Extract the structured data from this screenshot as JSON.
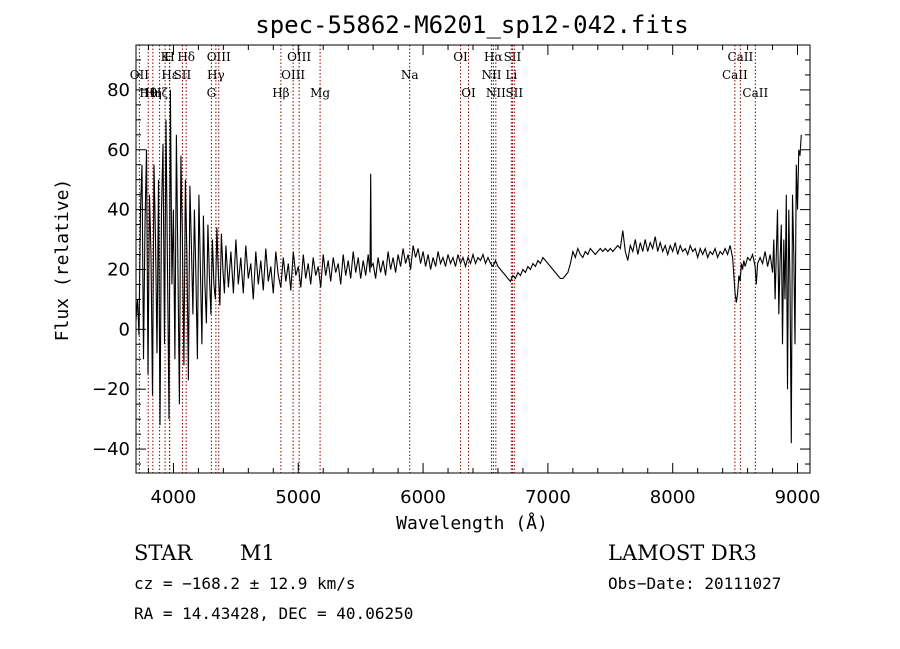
{
  "chart_data": {
    "type": "line",
    "title": "spec-55862-M6201_sp12-042.fits",
    "xlabel": "Wavelength (Å)",
    "ylabel": "Flux (relative)",
    "xlim": [
      3700,
      9100
    ],
    "ylim": [
      -48,
      95
    ],
    "xticks": [
      4000,
      5000,
      6000,
      7000,
      8000,
      9000
    ],
    "xtick_labels": [
      "4000",
      "5000",
      "6000",
      "7000",
      "8000",
      "9000"
    ],
    "yticks": [
      -40,
      -20,
      0,
      20,
      40,
      60,
      80
    ],
    "ytick_labels": [
      "−40",
      "−20",
      "0",
      "20",
      "40",
      "60",
      "80"
    ],
    "line_color": "#000000",
    "marker_color": "#8b0000",
    "spectrum_points": [
      [
        3700,
        3
      ],
      [
        3712,
        10
      ],
      [
        3724,
        -2
      ],
      [
        3736,
        40
      ],
      [
        3748,
        55
      ],
      [
        3760,
        -10
      ],
      [
        3772,
        35
      ],
      [
        3784,
        60
      ],
      [
        3796,
        -15
      ],
      [
        3808,
        45
      ],
      [
        3820,
        25
      ],
      [
        3832,
        -22
      ],
      [
        3844,
        55
      ],
      [
        3856,
        30
      ],
      [
        3868,
        -8
      ],
      [
        3880,
        50
      ],
      [
        3892,
        -32
      ],
      [
        3904,
        40
      ],
      [
        3916,
        62
      ],
      [
        3928,
        -5
      ],
      [
        3940,
        70
      ],
      [
        3952,
        20
      ],
      [
        3964,
        -30
      ],
      [
        3976,
        80
      ],
      [
        3988,
        15
      ],
      [
        4000,
        40
      ],
      [
        4012,
        -10
      ],
      [
        4024,
        65
      ],
      [
        4036,
        22
      ],
      [
        4048,
        -25
      ],
      [
        4060,
        58
      ],
      [
        4072,
        30
      ],
      [
        4084,
        -12
      ],
      [
        4096,
        50
      ],
      [
        4108,
        25
      ],
      [
        4120,
        -17
      ],
      [
        4132,
        48
      ],
      [
        4144,
        28
      ],
      [
        4156,
        5
      ],
      [
        4168,
        40
      ],
      [
        4180,
        18
      ],
      [
        4192,
        -10
      ],
      [
        4204,
        45
      ],
      [
        4216,
        20
      ],
      [
        4228,
        -5
      ],
      [
        4240,
        38
      ],
      [
        4252,
        15
      ],
      [
        4264,
        2
      ],
      [
        4276,
        35
      ],
      [
        4288,
        18
      ],
      [
        4300,
        5
      ],
      [
        4312,
        30
      ],
      [
        4324,
        15
      ],
      [
        4336,
        10
      ],
      [
        4348,
        34
      ],
      [
        4360,
        18
      ],
      [
        4372,
        8
      ],
      [
        4384,
        32
      ],
      [
        4396,
        20
      ],
      [
        4408,
        12
      ],
      [
        4420,
        28
      ],
      [
        4440,
        14
      ],
      [
        4460,
        26
      ],
      [
        4480,
        12
      ],
      [
        4500,
        30
      ],
      [
        4520,
        15
      ],
      [
        4540,
        24
      ],
      [
        4560,
        12
      ],
      [
        4580,
        28
      ],
      [
        4600,
        17
      ],
      [
        4620,
        22
      ],
      [
        4640,
        10
      ],
      [
        4660,
        26
      ],
      [
        4680,
        15
      ],
      [
        4700,
        23
      ],
      [
        4720,
        13
      ],
      [
        4740,
        27
      ],
      [
        4760,
        16
      ],
      [
        4780,
        21
      ],
      [
        4800,
        12
      ],
      [
        4820,
        26
      ],
      [
        4840,
        18
      ],
      [
        4860,
        14
      ],
      [
        4880,
        24
      ],
      [
        4900,
        16
      ],
      [
        4920,
        22
      ],
      [
        4940,
        13
      ],
      [
        4960,
        26
      ],
      [
        4980,
        18
      ],
      [
        5000,
        21
      ],
      [
        5020,
        14
      ],
      [
        5040,
        25
      ],
      [
        5060,
        17
      ],
      [
        5080,
        22
      ],
      [
        5100,
        15
      ],
      [
        5120,
        24
      ],
      [
        5140,
        18
      ],
      [
        5160,
        21
      ],
      [
        5180,
        14
      ],
      [
        5200,
        25
      ],
      [
        5220,
        18
      ],
      [
        5240,
        23
      ],
      [
        5260,
        16
      ],
      [
        5280,
        24
      ],
      [
        5300,
        19
      ],
      [
        5320,
        22
      ],
      [
        5340,
        15
      ],
      [
        5360,
        25
      ],
      [
        5380,
        18
      ],
      [
        5400,
        23
      ],
      [
        5420,
        17
      ],
      [
        5440,
        26
      ],
      [
        5460,
        19
      ],
      [
        5480,
        24
      ],
      [
        5500,
        17
      ],
      [
        5520,
        23
      ],
      [
        5540,
        18
      ],
      [
        5560,
        25
      ],
      [
        5575,
        19
      ],
      [
        5580,
        52
      ],
      [
        5585,
        21
      ],
      [
        5600,
        22
      ],
      [
        5620,
        17
      ],
      [
        5640,
        24
      ],
      [
        5660,
        19
      ],
      [
        5680,
        23
      ],
      [
        5700,
        18
      ],
      [
        5720,
        26
      ],
      [
        5740,
        20
      ],
      [
        5760,
        24
      ],
      [
        5780,
        19
      ],
      [
        5800,
        25
      ],
      [
        5820,
        21
      ],
      [
        5840,
        27
      ],
      [
        5860,
        22
      ],
      [
        5880,
        25
      ],
      [
        5900,
        20
      ],
      [
        5920,
        28
      ],
      [
        5940,
        24
      ],
      [
        5960,
        27
      ],
      [
        5980,
        22
      ],
      [
        6000,
        26
      ],
      [
        6020,
        21
      ],
      [
        6040,
        25
      ],
      [
        6060,
        20
      ],
      [
        6080,
        24
      ],
      [
        6100,
        21
      ],
      [
        6120,
        26
      ],
      [
        6140,
        22
      ],
      [
        6160,
        24
      ],
      [
        6180,
        21
      ],
      [
        6200,
        25
      ],
      [
        6220,
        22
      ],
      [
        6240,
        24
      ],
      [
        6260,
        21
      ],
      [
        6280,
        25
      ],
      [
        6300,
        22
      ],
      [
        6320,
        24
      ],
      [
        6340,
        21
      ],
      [
        6360,
        24
      ],
      [
        6380,
        22
      ],
      [
        6400,
        25
      ],
      [
        6420,
        22
      ],
      [
        6440,
        24
      ],
      [
        6460,
        23
      ],
      [
        6480,
        25
      ],
      [
        6500,
        22
      ],
      [
        6520,
        24
      ],
      [
        6540,
        22
      ],
      [
        6560,
        21
      ],
      [
        6580,
        23
      ],
      [
        6600,
        21
      ],
      [
        6620,
        20
      ],
      [
        6640,
        19
      ],
      [
        6660,
        18
      ],
      [
        6680,
        17
      ],
      [
        6700,
        16
      ],
      [
        6720,
        18
      ],
      [
        6740,
        17
      ],
      [
        6760,
        19
      ],
      [
        6780,
        18
      ],
      [
        6800,
        20
      ],
      [
        6820,
        19
      ],
      [
        6840,
        21
      ],
      [
        6860,
        20
      ],
      [
        6880,
        22
      ],
      [
        6900,
        21
      ],
      [
        6920,
        23
      ],
      [
        6940,
        22
      ],
      [
        6960,
        24
      ],
      [
        6980,
        23
      ],
      [
        7000,
        22
      ],
      [
        7020,
        21
      ],
      [
        7040,
        20
      ],
      [
        7060,
        19
      ],
      [
        7080,
        18
      ],
      [
        7100,
        17
      ],
      [
        7120,
        17
      ],
      [
        7140,
        18
      ],
      [
        7160,
        19
      ],
      [
        7180,
        22
      ],
      [
        7200,
        26
      ],
      [
        7220,
        24
      ],
      [
        7240,
        27
      ],
      [
        7260,
        25
      ],
      [
        7280,
        24
      ],
      [
        7300,
        26
      ],
      [
        7320,
        25
      ],
      [
        7340,
        27
      ],
      [
        7360,
        26
      ],
      [
        7380,
        25
      ],
      [
        7400,
        26
      ],
      [
        7420,
        27
      ],
      [
        7440,
        26
      ],
      [
        7460,
        27
      ],
      [
        7480,
        26
      ],
      [
        7500,
        27
      ],
      [
        7520,
        26
      ],
      [
        7540,
        27
      ],
      [
        7560,
        28
      ],
      [
        7580,
        27
      ],
      [
        7600,
        33
      ],
      [
        7620,
        26
      ],
      [
        7640,
        23
      ],
      [
        7660,
        28
      ],
      [
        7680,
        26
      ],
      [
        7700,
        30
      ],
      [
        7720,
        25
      ],
      [
        7740,
        29
      ],
      [
        7760,
        26
      ],
      [
        7780,
        30
      ],
      [
        7800,
        26
      ],
      [
        7820,
        29
      ],
      [
        7840,
        27
      ],
      [
        7860,
        31
      ],
      [
        7880,
        26
      ],
      [
        7900,
        29
      ],
      [
        7920,
        26
      ],
      [
        7940,
        28
      ],
      [
        7960,
        25
      ],
      [
        7980,
        28
      ],
      [
        8000,
        26
      ],
      [
        8020,
        29
      ],
      [
        8040,
        25
      ],
      [
        8060,
        28
      ],
      [
        8080,
        26
      ],
      [
        8100,
        27
      ],
      [
        8120,
        25
      ],
      [
        8140,
        28
      ],
      [
        8160,
        26
      ],
      [
        8180,
        27
      ],
      [
        8200,
        24
      ],
      [
        8220,
        27
      ],
      [
        8240,
        25
      ],
      [
        8260,
        27
      ],
      [
        8280,
        24
      ],
      [
        8300,
        26
      ],
      [
        8320,
        25
      ],
      [
        8340,
        27
      ],
      [
        8360,
        24
      ],
      [
        8380,
        26
      ],
      [
        8400,
        25
      ],
      [
        8420,
        27
      ],
      [
        8440,
        25
      ],
      [
        8460,
        28
      ],
      [
        8480,
        24
      ],
      [
        8500,
        12
      ],
      [
        8510,
        9
      ],
      [
        8520,
        12
      ],
      [
        8530,
        18
      ],
      [
        8540,
        16
      ],
      [
        8550,
        22
      ],
      [
        8560,
        20
      ],
      [
        8570,
        23
      ],
      [
        8580,
        21
      ],
      [
        8600,
        24
      ],
      [
        8620,
        23
      ],
      [
        8640,
        25
      ],
      [
        8660,
        21
      ],
      [
        8670,
        15
      ],
      [
        8680,
        22
      ],
      [
        8700,
        24
      ],
      [
        8720,
        22
      ],
      [
        8740,
        26
      ],
      [
        8760,
        21
      ],
      [
        8780,
        25
      ],
      [
        8800,
        19
      ],
      [
        8810,
        30
      ],
      [
        8820,
        10
      ],
      [
        8830,
        25
      ],
      [
        8840,
        40
      ],
      [
        8850,
        5
      ],
      [
        8860,
        22
      ],
      [
        8870,
        35
      ],
      [
        8880,
        -5
      ],
      [
        8890,
        30
      ],
      [
        8900,
        10
      ],
      [
        8910,
        45
      ],
      [
        8920,
        -20
      ],
      [
        8930,
        40
      ],
      [
        8940,
        15
      ],
      [
        8950,
        -38
      ],
      [
        8960,
        45
      ],
      [
        8970,
        25
      ],
      [
        8980,
        -5
      ],
      [
        8990,
        55
      ],
      [
        9000,
        40
      ],
      [
        9010,
        60
      ],
      [
        9020,
        58
      ],
      [
        9030,
        65
      ]
    ],
    "line_markers": [
      {
        "wl": 3727,
        "label": "OII",
        "row": 1
      },
      {
        "wl": 3798,
        "label": "Hθ",
        "row": 2
      },
      {
        "wl": 3835,
        "label": "Hη",
        "row": 2
      },
      {
        "wl": 3889,
        "label": "Hζ",
        "row": 2
      },
      {
        "wl": 3933,
        "label": "K",
        "row": 0
      },
      {
        "wl": 3968,
        "label": "H",
        "row": 0
      },
      {
        "wl": 3970,
        "label": "Hε",
        "row": 1
      },
      {
        "wl": 4072,
        "label": "SII",
        "row": 1
      },
      {
        "wl": 4102,
        "label": "Hδ",
        "row": 0
      },
      {
        "wl": 4304,
        "label": "G",
        "row": 2
      },
      {
        "wl": 4340,
        "label": "Hγ",
        "row": 1
      },
      {
        "wl": 4363,
        "label": "OIII",
        "row": 0
      },
      {
        "wl": 4861,
        "label": "Hβ",
        "row": 2
      },
      {
        "wl": 4959,
        "label": "OIII",
        "row": 1
      },
      {
        "wl": 5007,
        "label": "OIII",
        "row": 0
      },
      {
        "wl": 5175,
        "label": "Mg",
        "row": 2
      },
      {
        "wl": 5893,
        "label": "Na",
        "row": 1
      },
      {
        "wl": 6300,
        "label": "OI",
        "row": 0
      },
      {
        "wl": 6364,
        "label": "OI",
        "row": 2
      },
      {
        "wl": 6548,
        "label": "NII",
        "row": 1
      },
      {
        "wl": 6563,
        "label": "Hα",
        "row": 0
      },
      {
        "wl": 6583,
        "label": "NII",
        "row": 2
      },
      {
        "wl": 6707,
        "label": "Li",
        "row": 1
      },
      {
        "wl": 6716,
        "label": "SII",
        "row": 0
      },
      {
        "wl": 6731,
        "label": "SII",
        "row": 2
      },
      {
        "wl": 8498,
        "label": "CaII",
        "row": 1
      },
      {
        "wl": 8542,
        "label": "CaII",
        "row": 0
      },
      {
        "wl": 8662,
        "label": "CaII",
        "row": 2
      }
    ]
  },
  "info": {
    "object_type": "STAR",
    "subclass": "M1",
    "survey": "LAMOST DR3",
    "cz": "cz = −168.2 ± 12.9 km/s",
    "obs_date": "Obs−Date: 20111027",
    "coords": "RA =  14.43428, DEC =  40.06250"
  }
}
